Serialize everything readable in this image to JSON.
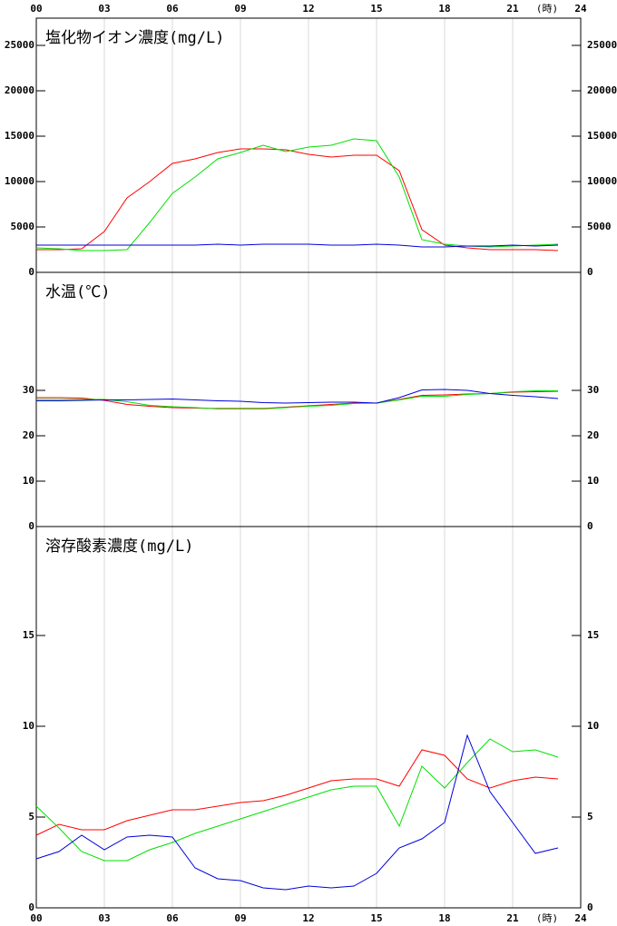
{
  "chart_data": [
    {
      "type": "line",
      "title": "塩化物イオン濃度(mg/L)",
      "x_unit": "(時)",
      "x": [
        0,
        1,
        2,
        3,
        4,
        5,
        6,
        7,
        8,
        9,
        10,
        11,
        12,
        13,
        14,
        15,
        16,
        17,
        18,
        19,
        20,
        21,
        22,
        23
      ],
      "xlim": [
        0,
        24
      ],
      "xticks": [
        {
          "value": 0,
          "label": "00"
        },
        {
          "value": 3,
          "label": "03"
        },
        {
          "value": 6,
          "label": "06"
        },
        {
          "value": 9,
          "label": "09"
        },
        {
          "value": 12,
          "label": "12"
        },
        {
          "value": 15,
          "label": "15"
        },
        {
          "value": 18,
          "label": "18"
        },
        {
          "value": 21,
          "label": "21"
        },
        {
          "value": 24,
          "label": "24"
        }
      ],
      "ylim": [
        0,
        28000
      ],
      "yticks": [
        0,
        5000,
        10000,
        15000,
        20000,
        25000
      ],
      "grid": true,
      "series": [
        {
          "color": "#ff0000",
          "values": [
            2500,
            2500,
            2600,
            4500,
            8200,
            10000,
            12000,
            12500,
            13200,
            13600,
            13600,
            13500,
            13000,
            12700,
            12900,
            12900,
            11200,
            4700,
            3000,
            2700,
            2500,
            2500,
            2500,
            2400
          ]
        },
        {
          "color": "#00e000",
          "values": [
            2700,
            2600,
            2400,
            2400,
            2500,
            5500,
            8700,
            10500,
            12500,
            13200,
            14000,
            13300,
            13800,
            14000,
            14700,
            14500,
            10500,
            3600,
            3100,
            2900,
            2800,
            2900,
            3000,
            3100
          ]
        },
        {
          "color": "#0000dd",
          "values": [
            3000,
            3000,
            3000,
            3000,
            3000,
            3000,
            3000,
            3000,
            3100,
            3000,
            3100,
            3100,
            3100,
            3000,
            3000,
            3100,
            3000,
            2800,
            2800,
            2900,
            2900,
            3000,
            2900,
            3000
          ]
        }
      ]
    },
    {
      "type": "line",
      "title": "水温(℃)",
      "x": [
        0,
        1,
        2,
        3,
        4,
        5,
        6,
        7,
        8,
        9,
        10,
        11,
        12,
        13,
        14,
        15,
        16,
        17,
        18,
        19,
        20,
        21,
        22,
        23
      ],
      "xlim": [
        0,
        24
      ],
      "xticks": [
        0,
        3,
        6,
        9,
        12,
        15,
        18,
        21,
        24
      ],
      "ylim": [
        0,
        56
      ],
      "yticks": [
        0,
        10,
        20,
        30
      ],
      "grid": true,
      "series": [
        {
          "color": "#ff0000",
          "values": [
            28.4,
            28.4,
            28.3,
            27.8,
            26.9,
            26.5,
            26.2,
            26.1,
            26.0,
            26.0,
            26.0,
            26.3,
            26.6,
            26.9,
            27.2,
            27.2,
            28.0,
            28.9,
            29.0,
            29.2,
            29.3,
            29.6,
            29.7,
            29.8
          ]
        },
        {
          "color": "#00e000",
          "values": [
            28.0,
            28.0,
            28.0,
            28.0,
            27.5,
            26.7,
            26.4,
            26.2,
            25.9,
            25.9,
            25.9,
            26.2,
            26.5,
            26.7,
            27.1,
            27.2,
            27.9,
            28.7,
            28.7,
            29.1,
            29.3,
            29.7,
            29.9,
            29.9
          ]
        },
        {
          "color": "#0000dd",
          "values": [
            27.7,
            27.7,
            27.8,
            27.9,
            27.9,
            28.0,
            28.1,
            27.9,
            27.7,
            27.6,
            27.3,
            27.2,
            27.3,
            27.4,
            27.4,
            27.2,
            28.4,
            30.1,
            30.2,
            30.0,
            29.3,
            28.9,
            28.6,
            28.2
          ]
        }
      ]
    },
    {
      "type": "line",
      "title": "溶存酸素濃度(mg/L)",
      "x_unit": "(時)",
      "x": [
        0,
        1,
        2,
        3,
        4,
        5,
        6,
        7,
        8,
        9,
        10,
        11,
        12,
        13,
        14,
        15,
        16,
        17,
        18,
        19,
        20,
        21,
        22,
        23
      ],
      "xlim": [
        0,
        24
      ],
      "xticks": [
        {
          "value": 0,
          "label": "00"
        },
        {
          "value": 3,
          "label": "03"
        },
        {
          "value": 6,
          "label": "06"
        },
        {
          "value": 9,
          "label": "09"
        },
        {
          "value": 12,
          "label": "12"
        },
        {
          "value": 15,
          "label": "15"
        },
        {
          "value": 18,
          "label": "18"
        },
        {
          "value": 21,
          "label": "21"
        },
        {
          "value": 24,
          "label": "24"
        }
      ],
      "ylim": [
        0,
        21
      ],
      "yticks": [
        0,
        5,
        10,
        15
      ],
      "grid": true,
      "series": [
        {
          "color": "#ff0000",
          "values": [
            4.0,
            4.6,
            4.3,
            4.3,
            4.8,
            5.1,
            5.4,
            5.4,
            5.6,
            5.8,
            5.9,
            6.2,
            6.6,
            7.0,
            7.1,
            7.1,
            6.7,
            8.7,
            8.4,
            7.1,
            6.6,
            7.0,
            7.2,
            7.1
          ]
        },
        {
          "color": "#00e000",
          "values": [
            5.6,
            4.4,
            3.1,
            2.6,
            2.6,
            3.2,
            3.6,
            4.1,
            4.5,
            4.9,
            5.3,
            5.7,
            6.1,
            6.5,
            6.7,
            6.7,
            4.5,
            7.8,
            6.6,
            8.0,
            9.3,
            8.6,
            8.7,
            8.3
          ]
        },
        {
          "color": "#0000dd",
          "values": [
            2.7,
            3.1,
            4.0,
            3.2,
            3.9,
            4.0,
            3.9,
            2.2,
            1.6,
            1.5,
            1.1,
            1.0,
            1.2,
            1.1,
            1.2,
            1.9,
            3.3,
            3.8,
            4.7,
            9.5,
            6.4,
            4.7,
            3.0,
            3.3
          ]
        }
      ]
    }
  ]
}
